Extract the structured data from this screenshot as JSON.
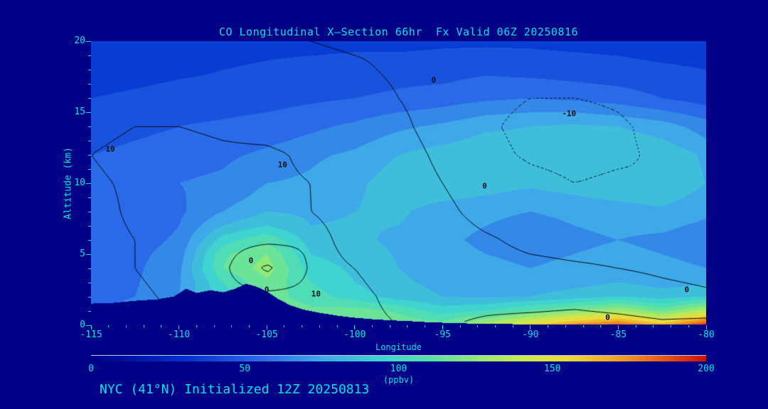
{
  "title": "CO Longitudinal X—Section 66hr  Fx Valid 06Z 20250816",
  "footer": "NYC (41°N) Initialized 12Z 20250813",
  "colors": {
    "background": "#000087",
    "text": "#00e4e4",
    "contour_line": "#000a14"
  },
  "axes": {
    "x": {
      "label": "Longitude",
      "ticks": [
        -115,
        -110,
        -105,
        -100,
        -95,
        -90,
        -85,
        -80
      ],
      "range": [
        -115,
        -80
      ]
    },
    "y": {
      "label": "Altitude (km)",
      "ticks": [
        0,
        5,
        10,
        15,
        20
      ],
      "range": [
        0,
        20
      ]
    }
  },
  "colorbar": {
    "label": "(ppbv)",
    "ticks": [
      0,
      50,
      100,
      150,
      200
    ],
    "range": [
      0,
      200
    ],
    "stops": [
      [
        0,
        "#000085"
      ],
      [
        30,
        "#0030cc"
      ],
      [
        55,
        "#2a6ae8"
      ],
      [
        75,
        "#3fa8e8"
      ],
      [
        95,
        "#3fd4cf"
      ],
      [
        110,
        "#58e0a8"
      ],
      [
        125,
        "#90e878"
      ],
      [
        140,
        "#c8ea50"
      ],
      [
        155,
        "#eed93c"
      ],
      [
        170,
        "#f0a828"
      ],
      [
        185,
        "#e86018"
      ],
      [
        200,
        "#cc1008"
      ]
    ]
  },
  "chart_data": {
    "type": "heatmap",
    "title": "CO Longitudinal X—Section 66hr  Fx Valid 06Z 20250816",
    "xlabel": "Longitude",
    "ylabel": "Altitude (km)",
    "xlim": [
      -115,
      -80
    ],
    "ylim": [
      0,
      20
    ],
    "fill_units": "ppbv",
    "fill_range": [
      0,
      200
    ],
    "x": [
      -115,
      -112.5,
      -110,
      -107.5,
      -105,
      -102.5,
      -100,
      -97.5,
      -95,
      -92.5,
      -90,
      -87.5,
      -85,
      -82.5,
      -80
    ],
    "fill_y": [
      0,
      1,
      2,
      3,
      4,
      5,
      6,
      7,
      8,
      9,
      10,
      11,
      12,
      13,
      14,
      15,
      16,
      17,
      18,
      19,
      20
    ],
    "fill": [
      [
        60,
        70,
        80,
        110,
        125,
        120,
        125,
        118,
        115,
        135,
        155,
        175,
        185,
        165,
        195
      ],
      [
        58,
        65,
        75,
        100,
        120,
        112,
        115,
        108,
        95,
        100,
        110,
        120,
        130,
        115,
        135
      ],
      [
        55,
        60,
        70,
        95,
        115,
        105,
        95,
        85,
        80,
        78,
        80,
        85,
        90,
        85,
        90
      ],
      [
        53,
        59,
        69,
        100,
        118,
        100,
        90,
        82,
        77,
        75,
        74,
        76,
        80,
        76,
        78
      ],
      [
        52,
        58,
        68,
        110,
        125,
        95,
        88,
        80,
        75,
        72,
        70,
        72,
        75,
        72,
        70
      ],
      [
        51,
        57,
        65,
        108,
        120,
        90,
        85,
        79,
        73,
        70,
        68,
        70,
        72,
        70,
        68
      ],
      [
        50,
        55,
        62,
        95,
        108,
        85,
        82,
        78,
        72,
        68,
        65,
        68,
        70,
        68,
        65
      ],
      [
        50,
        53,
        60,
        80,
        90,
        80,
        81,
        80,
        73,
        70,
        67,
        70,
        72,
        72,
        68
      ],
      [
        50,
        52,
        58,
        70,
        80,
        78,
        80,
        82,
        75,
        72,
        70,
        72,
        75,
        78,
        72
      ],
      [
        52,
        55,
        59,
        65,
        74,
        75,
        79,
        84,
        82,
        79,
        76,
        79,
        82,
        84,
        76
      ],
      [
        55,
        58,
        60,
        62,
        70,
        72,
        78,
        85,
        88,
        85,
        82,
        85,
        88,
        90,
        80
      ],
      [
        52,
        55,
        58,
        60,
        66,
        70,
        75,
        83,
        87,
        87,
        84,
        87,
        89,
        89,
        79
      ],
      [
        50,
        52,
        55,
        58,
        62,
        68,
        72,
        80,
        85,
        88,
        85,
        88,
        90,
        88,
        78
      ],
      [
        48,
        50,
        52,
        55,
        58,
        62,
        67,
        74,
        78,
        83,
        83,
        85,
        85,
        81,
        71
      ],
      [
        45,
        48,
        50,
        52,
        55,
        58,
        62,
        68,
        72,
        78,
        80,
        82,
        80,
        75,
        65
      ],
      [
        42,
        45,
        47,
        48,
        50,
        53,
        56,
        60,
        63,
        68,
        70,
        70,
        67,
        62,
        55
      ],
      [
        40,
        42,
        44,
        45,
        46,
        48,
        50,
        52,
        55,
        58,
        60,
        58,
        55,
        50,
        45
      ],
      [
        37,
        39,
        41,
        42,
        44,
        46,
        47,
        49,
        50,
        53,
        53,
        51,
        49,
        46,
        42
      ],
      [
        35,
        36,
        38,
        40,
        42,
        44,
        45,
        46,
        46,
        48,
        46,
        45,
        44,
        42,
        40
      ],
      [
        33,
        34,
        36,
        37,
        39,
        40,
        41,
        41,
        42,
        43,
        42,
        41,
        40,
        38,
        37
      ],
      [
        32,
        33,
        34,
        35,
        36,
        36,
        37,
        37,
        38,
        38,
        38,
        37,
        36,
        35,
        34
      ]
    ],
    "contour_levels": [
      -10,
      0,
      10
    ],
    "contour_y": [
      0,
      2,
      4,
      6,
      8,
      10,
      12,
      14,
      16,
      18,
      20
    ],
    "contours": [
      [
        5,
        8,
        10,
        12,
        14,
        12,
        11,
        10,
        9,
        12,
        14,
        15,
        14,
        12,
        13
      ],
      [
        6,
        9,
        11,
        13,
        13,
        12,
        11,
        9,
        7,
        6,
        5,
        6,
        4,
        2,
        1
      ],
      [
        7,
        10,
        12,
        12,
        -2,
        11,
        10,
        8,
        5,
        3,
        2,
        1,
        0,
        -1,
        -2
      ],
      [
        8,
        10,
        12,
        13,
        12,
        11,
        9,
        7,
        4,
        1,
        -2,
        -3,
        -3,
        -4,
        -5
      ],
      [
        8,
        11,
        12,
        12,
        12,
        10,
        9,
        6,
        2,
        -3,
        -5,
        -6,
        -7,
        -8,
        -8
      ],
      [
        9,
        11,
        12,
        12,
        11,
        10,
        8,
        5,
        0,
        -5,
        -8,
        -10,
        -9,
        -10,
        -9
      ],
      [
        10,
        12,
        12,
        11,
        11,
        9,
        7,
        4,
        -2,
        -8,
        -11,
        -12,
        -11,
        -9,
        -7
      ],
      [
        8,
        10,
        10,
        9,
        8,
        7,
        5,
        2,
        -4,
        -9,
        -12,
        -13,
        -11,
        -8,
        -5
      ],
      [
        6,
        7,
        7,
        6,
        5,
        4,
        3,
        0,
        -4,
        -8,
        -10,
        -10,
        -9,
        -6,
        -3
      ],
      [
        3,
        4,
        4,
        3,
        3,
        2,
        1,
        -1,
        -3,
        -5,
        -6,
        -6,
        -5,
        -4,
        -2
      ],
      [
        1,
        2,
        2,
        1,
        1,
        0,
        -1,
        -1,
        -2,
        -3,
        -3,
        -3,
        -2,
        -2,
        -1
      ]
    ],
    "terrain": [
      [
        -115,
        1.5
      ],
      [
        -113.75,
        1.55
      ],
      [
        -112.5,
        1.7
      ],
      [
        -111.25,
        1.8
      ],
      [
        -110.3,
        2.0
      ],
      [
        -109.6,
        2.55
      ],
      [
        -109,
        2.25
      ],
      [
        -108.2,
        2.45
      ],
      [
        -107.5,
        2.3
      ],
      [
        -106.8,
        2.55
      ],
      [
        -106.2,
        2.9
      ],
      [
        -105.6,
        2.7
      ],
      [
        -105,
        2.35
      ],
      [
        -104.4,
        1.85
      ],
      [
        -103.7,
        1.4
      ],
      [
        -103,
        1.1
      ],
      [
        -102,
        0.85
      ],
      [
        -101,
        0.65
      ],
      [
        -100,
        0.5
      ],
      [
        -99,
        0.4
      ],
      [
        -98,
        0.32
      ],
      [
        -97,
        0.27
      ],
      [
        -96,
        0.2
      ],
      [
        -95,
        0.15
      ],
      [
        -93,
        0.08
      ],
      [
        -91,
        0.05
      ],
      [
        -89,
        0.03
      ],
      [
        -86,
        0.02
      ],
      [
        -83,
        0.01
      ],
      [
        -80,
        0.01
      ]
    ],
    "contour_labels": [
      {
        "text": "10",
        "lon": -113.9,
        "alt": 12.4
      },
      {
        "text": "10",
        "lon": -104.1,
        "alt": 11.3
      },
      {
        "text": "0",
        "lon": -95.5,
        "alt": 17.25
      },
      {
        "text": "-10",
        "lon": -87.8,
        "alt": 14.9
      },
      {
        "text": "0",
        "lon": -92.6,
        "alt": 9.8
      },
      {
        "text": "0",
        "lon": -105.9,
        "alt": 4.55
      },
      {
        "text": "0",
        "lon": -105.0,
        "alt": 2.5
      },
      {
        "text": "10",
        "lon": -102.2,
        "alt": 2.2
      },
      {
        "text": "0",
        "lon": -85.6,
        "alt": 0.55
      },
      {
        "text": "0",
        "lon": -81.1,
        "alt": 2.5
      }
    ]
  }
}
